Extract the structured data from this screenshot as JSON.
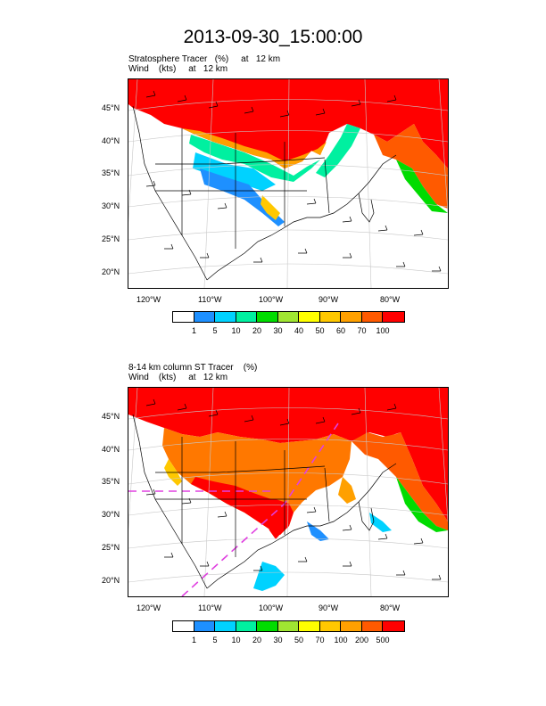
{
  "title": "2013-09-30_15:00:00",
  "panel1": {
    "subtitle_line1": "Stratosphere Tracer   (%)     at   12 km",
    "subtitle_line2": "Wind    (kts)     at   12 km",
    "lat_labels": [
      "45°N",
      "40°N",
      "35°N",
      "30°N",
      "25°N",
      "20°N"
    ],
    "lon_labels": [
      "120°W",
      "110°W",
      "100°W",
      "90°W",
      "80°W"
    ],
    "colorbar_labels": [
      "1",
      "5",
      "10",
      "20",
      "30",
      "40",
      "50",
      "60",
      "70",
      "100"
    ]
  },
  "panel2": {
    "subtitle_line1": "8-14 km column ST Tracer    (%)",
    "subtitle_line2": "Wind    (kts)     at   12 km",
    "lat_labels": [
      "45°N",
      "40°N",
      "35°N",
      "30°N",
      "25°N",
      "20°N"
    ],
    "lon_labels": [
      "120°W",
      "110°W",
      "100°W",
      "90°W",
      "80°W"
    ],
    "colorbar_labels": [
      "1",
      "5",
      "10",
      "20",
      "30",
      "50",
      "70",
      "100",
      "200",
      "500"
    ]
  },
  "colorbar_colors": [
    "#ffffff",
    "#1e90ff",
    "#00d2ff",
    "#00f0a0",
    "#00dc00",
    "#a0e632",
    "#ffff00",
    "#ffc800",
    "#ffa000",
    "#ff5a00",
    "#ff0000"
  ],
  "colors": {
    "high": "#ff0000",
    "mid_orange": "#ff7800",
    "dashed_line": "#e040e0"
  }
}
